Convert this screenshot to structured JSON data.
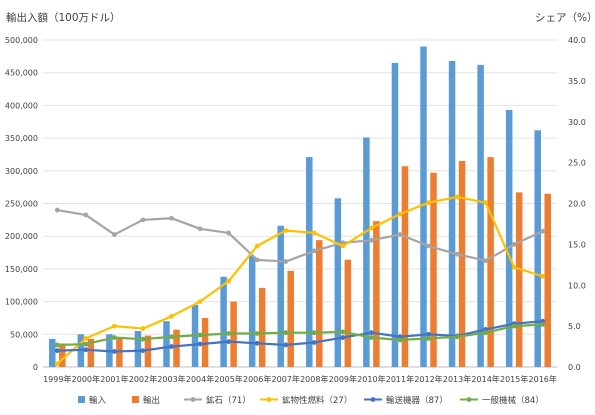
{
  "chart_data": {
    "type": "bar",
    "title_left": "輸出入額（100万ドル）",
    "title_right": "シェア（%）",
    "categories": [
      "1999年",
      "2000年",
      "2001年",
      "2002年",
      "2003年",
      "2004年",
      "2005年",
      "2006年",
      "2007年",
      "2008年",
      "2009年",
      "2010年",
      "2011年",
      "2012年",
      "2013年",
      "2014年",
      "2015年",
      "2016年"
    ],
    "y_left": {
      "min": 0,
      "max": 500000,
      "step": 50000,
      "ticks": [
        "0",
        "50,000",
        "100,000",
        "150,000",
        "200,000",
        "250,000",
        "300,000",
        "350,000",
        "400,000",
        "450,000",
        "500,000"
      ]
    },
    "y_right": {
      "min": 0,
      "max": 40,
      "step": 5,
      "ticks": [
        "0.0",
        "5.0",
        "10.0",
        "15.0",
        "20.0",
        "25.0",
        "30.0",
        "35.0",
        "40.0"
      ]
    },
    "bars": [
      {
        "name": "輸入",
        "color": "#5B9BD5",
        "values": [
          43000,
          50000,
          50000,
          55000,
          70000,
          95000,
          138000,
          170000,
          216000,
          321000,
          258000,
          351000,
          465000,
          490000,
          468000,
          462000,
          393000,
          362000
        ]
      },
      {
        "name": "輸出",
        "color": "#ED7D31",
        "values": [
          36000,
          43000,
          45000,
          48000,
          57000,
          75000,
          100000,
          121000,
          147000,
          194000,
          164000,
          223000,
          307000,
          297000,
          315000,
          321000,
          267000,
          265000
        ]
      }
    ],
    "lines": [
      {
        "name": "鉱石（71）",
        "color": "#A5A5A5",
        "values": [
          19.2,
          18.6,
          16.2,
          18.0,
          18.2,
          16.9,
          16.4,
          13.1,
          12.9,
          14.2,
          15.2,
          15.5,
          16.2,
          14.8,
          13.8,
          13.0,
          15.0,
          16.6
        ]
      },
      {
        "name": "鉱物性燃料（27）",
        "color": "#FFC000",
        "values": [
          0.4,
          3.5,
          5.0,
          4.7,
          6.2,
          8.0,
          10.5,
          14.8,
          16.7,
          16.4,
          14.8,
          17.0,
          18.7,
          20.1,
          20.8,
          20.1,
          12.2,
          11.1
        ]
      },
      {
        "name": "輸送機器（87）",
        "color": "#4472C4",
        "values": [
          2.0,
          2.1,
          1.9,
          2.0,
          2.5,
          2.8,
          3.1,
          2.9,
          2.7,
          3.0,
          3.6,
          4.2,
          3.7,
          4.0,
          3.8,
          4.6,
          5.3,
          5.6
        ]
      },
      {
        "name": "一般機械（84）",
        "color": "#70AD47",
        "values": [
          2.7,
          2.8,
          3.6,
          3.4,
          3.7,
          3.9,
          4.1,
          4.1,
          4.2,
          4.2,
          4.3,
          3.6,
          3.3,
          3.5,
          3.7,
          4.2,
          5.0,
          5.2
        ]
      }
    ]
  }
}
